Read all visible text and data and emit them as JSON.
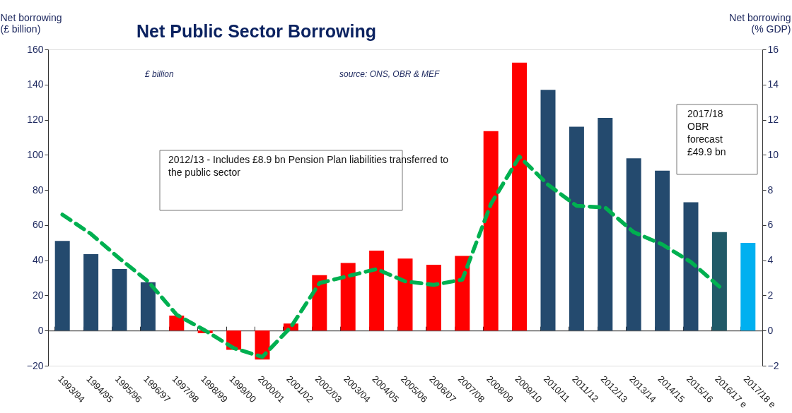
{
  "chart_data": {
    "type": "bar",
    "title": "Net Public Sector Borrowing",
    "ylabel": "Net borrowing\n(£ billion)",
    "y2label": "Net borrowing\n(% GDP)",
    "categories": [
      "1993/94",
      "1994/95",
      "1995/96",
      "1996/97",
      "1997/98",
      "1998/99",
      "1999/00",
      "2000/01",
      "2001/02",
      "2002/03",
      "2003/04",
      "2004/05",
      "2005/06",
      "2006/07",
      "2007/08",
      "2008/09",
      "2009/10",
      "2010/11",
      "2011/12",
      "2012/13",
      "2013/14",
      "2014/15",
      "2015/16",
      "2016/17 e",
      "2017/18 e"
    ],
    "series": [
      {
        "colors": [
          "#244a6e",
          "#244a6e",
          "#244a6e",
          "#244a6e",
          "#ff0000",
          "#ff0000",
          "#ff0000",
          "#ff0000",
          "#ff0000",
          "#ff0000",
          "#ff0000",
          "#ff0000",
          "#ff0000",
          "#ff0000",
          "#ff0000",
          "#ff0000",
          "#ff0000",
          "#244a6e",
          "#244a6e",
          "#244a6e",
          "#244a6e",
          "#244a6e",
          "#244a6e",
          "#215a68",
          "#00b0f0"
        ],
        "values": [
          51,
          43.5,
          35,
          27.5,
          8.5,
          -1.5,
          -11,
          -16.5,
          4,
          31.5,
          38.5,
          45.5,
          41,
          37.5,
          42.5,
          113.5,
          152.5,
          137,
          116,
          121,
          98,
          91,
          73,
          56,
          49.9
        ]
      },
      {
        "type": "line",
        "axis": "y2",
        "color": "#00b050",
        "line_style": "dashed",
        "values": [
          6.6,
          5.5,
          4.1,
          2.8,
          0.9,
          0.0,
          -1.0,
          -1.5,
          0.2,
          2.7,
          3.1,
          3.5,
          2.8,
          2.6,
          2.9,
          7.2,
          9.9,
          8.3,
          7.1,
          7.0,
          5.6,
          4.9,
          3.9,
          2.5,
          null
        ]
      }
    ],
    "ylim": [
      -20,
      160
    ],
    "yticks": [
      -20,
      0,
      20,
      40,
      60,
      80,
      100,
      120,
      140,
      160
    ],
    "y2lim": [
      -2,
      16
    ],
    "y2ticks": [
      -2,
      0,
      2,
      4,
      6,
      8,
      10,
      12,
      14,
      16
    ],
    "annotations": [
      "£ billion",
      "source: ONS, OBR & MEF",
      "2012/13 - Includes £8.9 bn Pension Plan liabilities transferred  to\nthe public sector",
      "2017/18\nOBR\nforecast\n£49.9 bn"
    ]
  }
}
